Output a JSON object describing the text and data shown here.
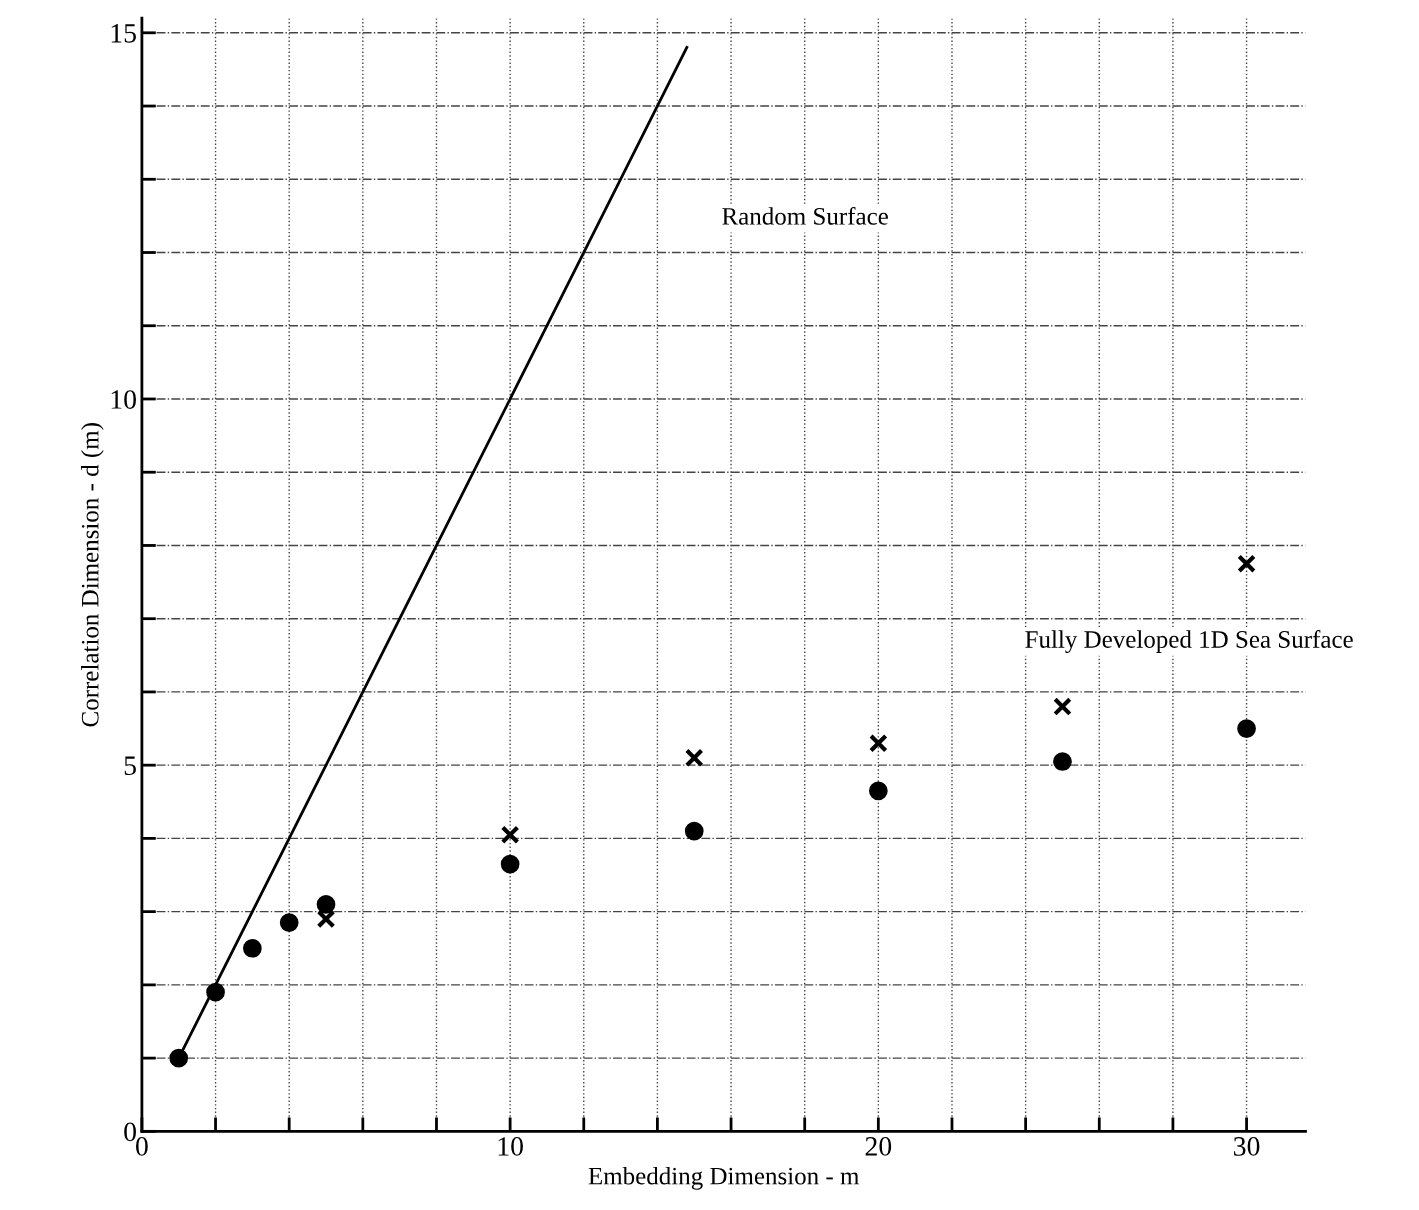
{
  "chart_data": {
    "type": "scatter",
    "xlabel": "Embedding Dimension - m",
    "ylabel": "Correlation Dimension - d (m)",
    "xlim": [
      0,
      31.6
    ],
    "ylim": [
      0,
      15.2
    ],
    "xticks": [
      0,
      {
        "value": 2,
        "label": null
      },
      {
        "value": 4,
        "label": null
      },
      {
        "value": 6,
        "label": null
      },
      {
        "value": 8,
        "label": null
      },
      10,
      {
        "value": 12,
        "label": null
      },
      {
        "value": 14,
        "label": null
      },
      {
        "value": 16,
        "label": null
      },
      {
        "value": 18,
        "label": null
      },
      20,
      {
        "value": 22,
        "label": null
      },
      {
        "value": 24,
        "label": null
      },
      {
        "value": 26,
        "label": null
      },
      {
        "value": 28,
        "label": null
      },
      30
    ],
    "yticks": [
      0,
      {
        "value": 1,
        "label": null
      },
      {
        "value": 2,
        "label": null
      },
      {
        "value": 3,
        "label": null
      },
      {
        "value": 4,
        "label": null
      },
      5,
      {
        "value": 6,
        "label": null
      },
      {
        "value": 7,
        "label": null
      },
      {
        "value": 8,
        "label": null
      },
      {
        "value": 9,
        "label": null
      },
      10,
      {
        "value": 11,
        "label": null
      },
      {
        "value": 12,
        "label": null
      },
      {
        "value": 13,
        "label": null
      },
      {
        "value": 14,
        "label": null
      },
      15
    ],
    "grid": true,
    "series": [
      {
        "type": "line",
        "color": "#000000",
        "x": [
          1,
          14.8
        ],
        "values": [
          1,
          14.8
        ],
        "marker": "none"
      },
      {
        "color": "#000000",
        "marker": "circle",
        "x": [
          1,
          2,
          3,
          4,
          5,
          10,
          15,
          20,
          25,
          30
        ],
        "values": [
          1.0,
          1.9,
          2.5,
          2.85,
          3.1,
          3.65,
          4.1,
          4.65,
          5.05,
          5.5
        ]
      },
      {
        "color": "#000000",
        "marker": "cross",
        "x": [
          5,
          10,
          15,
          20,
          25,
          30
        ],
        "values": [
          2.9,
          4.05,
          5.1,
          5.3,
          5.8,
          7.75
        ]
      }
    ],
    "annotations": [
      "Random Surface",
      "Fully Developed 1D Sea Surface"
    ]
  }
}
